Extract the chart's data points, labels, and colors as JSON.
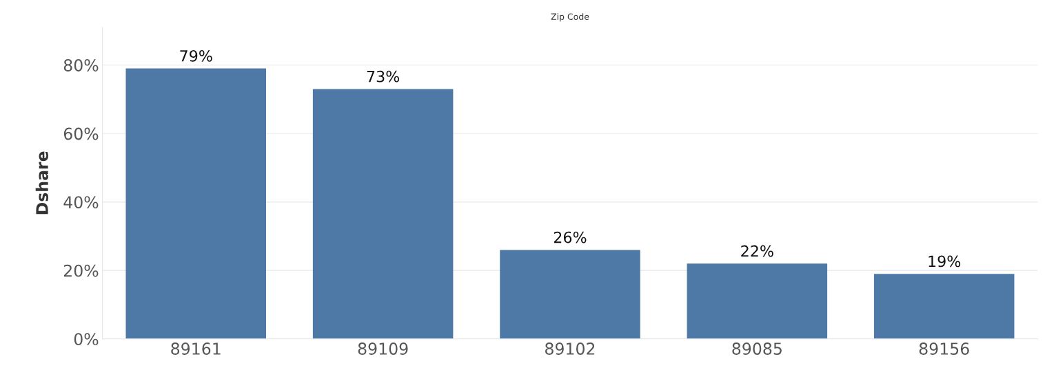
{
  "chart_data": {
    "type": "bar",
    "title": "Zip Code",
    "ylabel": "Dshare",
    "categories": [
      "89161",
      "89109",
      "89102",
      "89085",
      "89156"
    ],
    "values": [
      79,
      73,
      26,
      22,
      19
    ],
    "value_labels": [
      "79%",
      "73%",
      "26%",
      "22%",
      "19%"
    ],
    "color": "#4e79a7",
    "ylim": [
      0,
      91
    ],
    "yticks": [
      {
        "value": 0,
        "label": "0%"
      },
      {
        "value": 20,
        "label": "20%"
      },
      {
        "value": 40,
        "label": "40%"
      },
      {
        "value": 60,
        "label": "60%"
      },
      {
        "value": 80,
        "label": "80%"
      }
    ],
    "grid": "y",
    "legend": false
  }
}
